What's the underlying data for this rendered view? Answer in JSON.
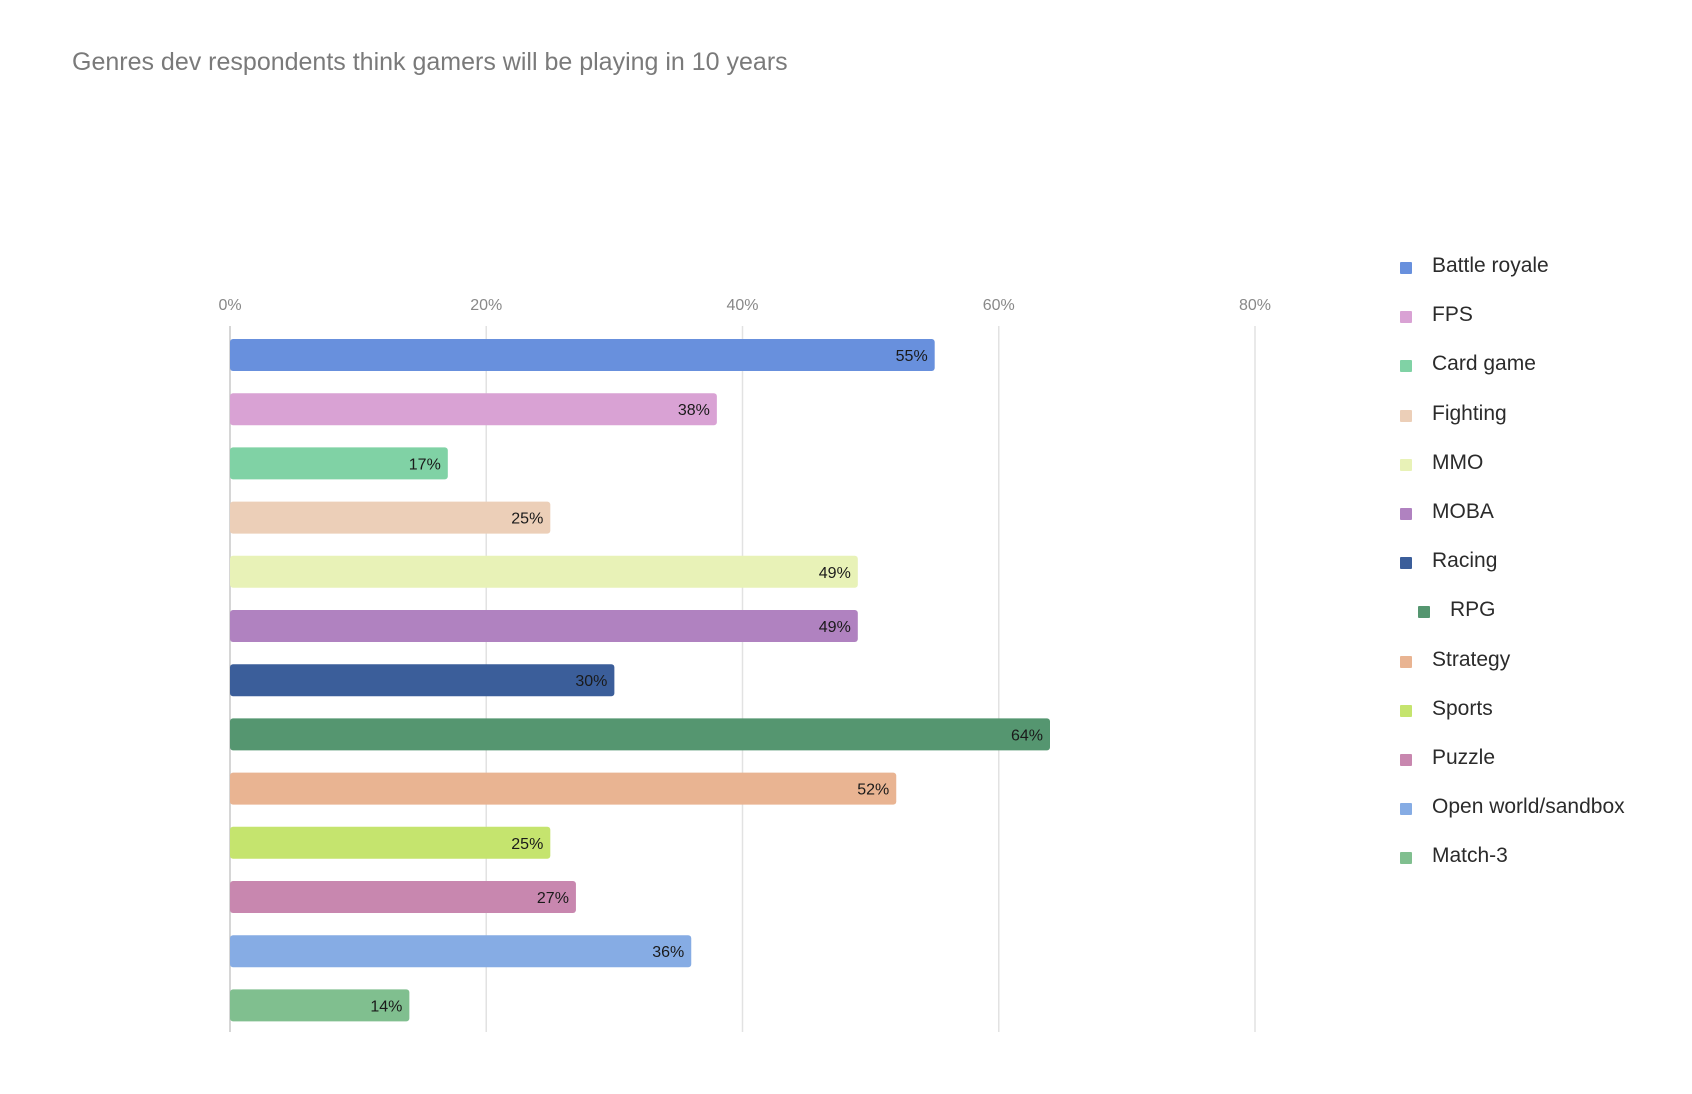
{
  "chart_data": {
    "type": "bar",
    "orientation": "horizontal",
    "title": "Genres dev respondents think gamers will be playing in 10 years",
    "xlabel": "",
    "ylabel": "",
    "xlim": [
      0,
      80
    ],
    "x_ticks": [
      "0%",
      "20%",
      "40%",
      "60%",
      "80%"
    ],
    "x_tick_values": [
      0,
      20,
      40,
      60,
      80
    ],
    "grid": true,
    "legend_position": "right",
    "series": [
      {
        "name": "Battle royale",
        "value": 55,
        "label": "55%",
        "color": "#6890dd"
      },
      {
        "name": "FPS",
        "value": 38,
        "label": "38%",
        "color": "#d9a2d4"
      },
      {
        "name": "Card game",
        "value": 17,
        "label": "17%",
        "color": "#80d2a5"
      },
      {
        "name": "Fighting",
        "value": 25,
        "label": "25%",
        "color": "#eccfb8"
      },
      {
        "name": "MMO",
        "value": 49,
        "label": "49%",
        "color": "#e8f2b7"
      },
      {
        "name": "MOBA",
        "value": 49,
        "label": "49%",
        "color": "#b082c0"
      },
      {
        "name": "Racing",
        "value": 30,
        "label": "30%",
        "color": "#3b5e9a"
      },
      {
        "name": "RPG",
        "value": 64,
        "label": "64%",
        "color": "#559670"
      },
      {
        "name": "Strategy",
        "value": 52,
        "label": "52%",
        "color": "#e9b492"
      },
      {
        "name": "Sports",
        "value": 25,
        "label": "25%",
        "color": "#c5e46e"
      },
      {
        "name": "Puzzle",
        "value": 27,
        "label": "27%",
        "color": "#c887af"
      },
      {
        "name": "Open world/sandbox",
        "value": 36,
        "label": "36%",
        "color": "#86ace4"
      },
      {
        "name": "Match-3",
        "value": 14,
        "label": "14%",
        "color": "#80bf8f"
      }
    ]
  },
  "legend": {
    "indented_item": "RPG"
  }
}
